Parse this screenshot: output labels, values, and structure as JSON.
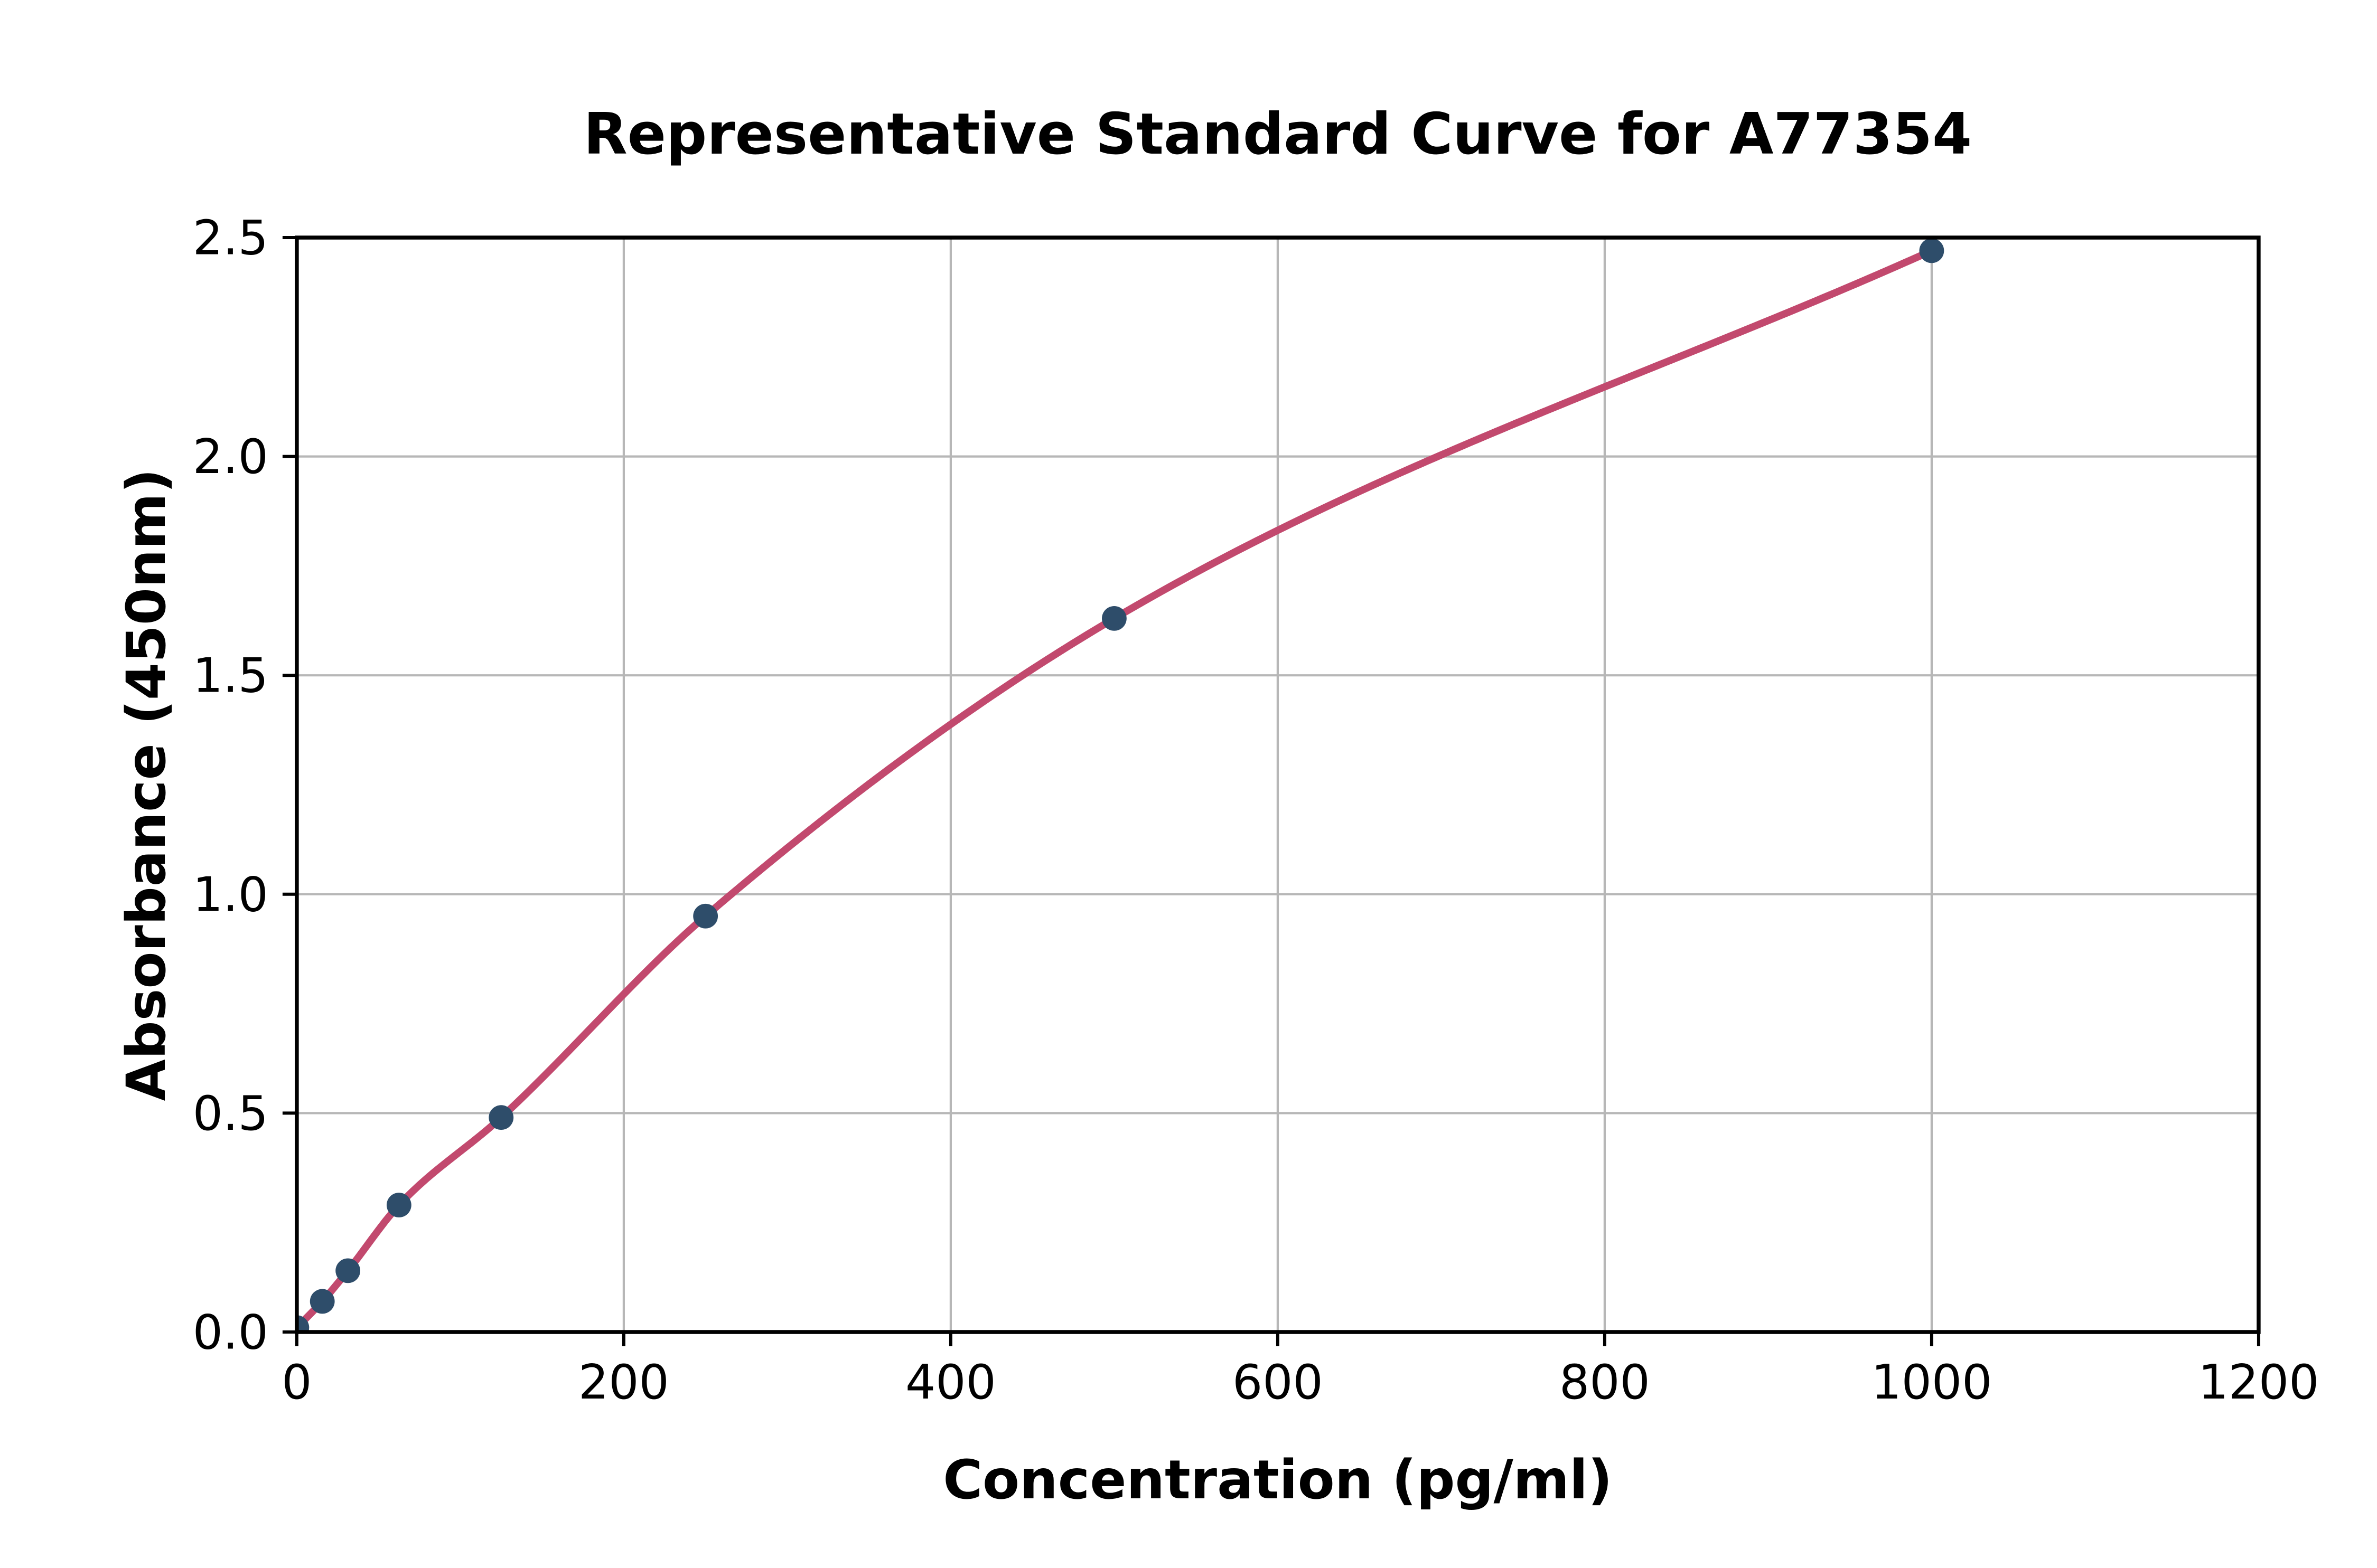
{
  "chart_data": {
    "type": "scatter",
    "title": "Representative Standard Curve for A77354",
    "xlabel": "Concentration (pg/ml)",
    "ylabel": "Absorbance (450nm)",
    "xlim": [
      0,
      1200
    ],
    "ylim": [
      0,
      2.5
    ],
    "grid": true,
    "legend": "none",
    "x_ticks": {
      "values": [
        0,
        200,
        400,
        600,
        800,
        1000,
        1200
      ],
      "labels": [
        "0",
        "200",
        "400",
        "600",
        "800",
        "1000",
        "1200"
      ]
    },
    "y_ticks": {
      "values": [
        0.0,
        0.5,
        1.0,
        1.5,
        2.0,
        2.5
      ],
      "labels": [
        "0.0",
        "0.5",
        "1.0",
        "1.5",
        "2.0",
        "2.5"
      ]
    },
    "series": [
      {
        "name": "standards",
        "marker": "circle",
        "fit_curve": "smooth-saturation-curve",
        "points": [
          {
            "x": 0,
            "y": 0.01
          },
          {
            "x": 15.6,
            "y": 0.07
          },
          {
            "x": 31.25,
            "y": 0.14
          },
          {
            "x": 62.5,
            "y": 0.29
          },
          {
            "x": 125,
            "y": 0.49
          },
          {
            "x": 250,
            "y": 0.95
          },
          {
            "x": 500,
            "y": 1.63
          },
          {
            "x": 1000,
            "y": 2.47
          }
        ]
      }
    ],
    "colors": {
      "curve": "#c2496e",
      "marker": "#2e4d6a",
      "grid": "#b7b7b7",
      "axis": "#000000",
      "background": "#ffffff"
    }
  }
}
